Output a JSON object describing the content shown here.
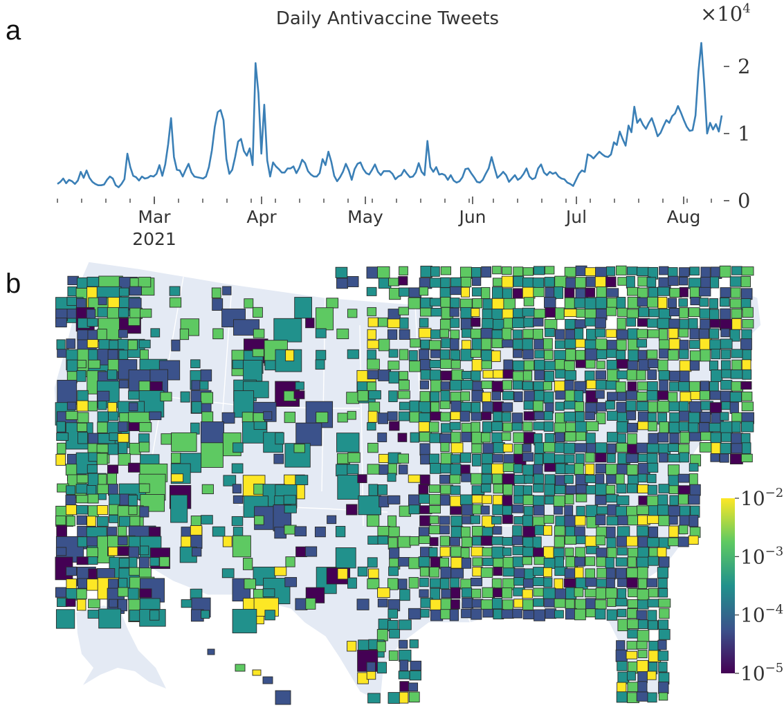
{
  "panels": {
    "a": "a",
    "b": "b"
  },
  "chart_data": [
    {
      "type": "line",
      "title": "Daily Antivaccine Tweets",
      "y_multiplier_label": "×10",
      "y_multiplier_exp": "4",
      "ylim": [
        0,
        25000
      ],
      "y_ticks": [
        {
          "v": 0,
          "label": "0"
        },
        {
          "v": 10000,
          "label": "1"
        },
        {
          "v": 20000,
          "label": "2"
        }
      ],
      "x_ticks": [
        {
          "date": "2021-03-01",
          "label": "Mar",
          "sub": "2021"
        },
        {
          "date": "2021-04-01",
          "label": "Apr"
        },
        {
          "date": "2021-05-01",
          "label": "May"
        },
        {
          "date": "2021-06-01",
          "label": "Jun"
        },
        {
          "date": "2021-07-01",
          "label": "Jul"
        },
        {
          "date": "2021-08-01",
          "label": "Aug"
        }
      ],
      "x_start": "2021-02-01",
      "x_end": "2021-08-12",
      "color": "#3a7fb6",
      "series": [
        {
          "values": [
            2500,
            2800,
            3300,
            2600,
            3100,
            2900,
            2500,
            3000,
            4300,
            3400,
            4500,
            3400,
            2800,
            2500,
            2300,
            2300,
            2400,
            3100,
            3600,
            3300,
            2300,
            2000,
            2500,
            3200,
            7000,
            5000,
            3700,
            3500,
            3000,
            3600,
            3300,
            3400,
            3700,
            3600,
            4000,
            5300,
            3700,
            5400,
            8400,
            12300,
            6500,
            4600,
            4500,
            3600,
            4600,
            5500,
            4200,
            3600,
            3500,
            3400,
            3300,
            3600,
            5000,
            7500,
            11000,
            13200,
            13500,
            12000,
            6200,
            4000,
            4600,
            6500,
            8800,
            9200,
            7400,
            6700,
            7800,
            5300,
            20500,
            16000,
            7000,
            14300,
            6000,
            3600,
            5700,
            5100,
            4700,
            4200,
            4200,
            4800,
            4800,
            5100,
            4100,
            4900,
            6100,
            5600,
            4400,
            3900,
            3600,
            3600,
            4100,
            6200,
            5300,
            7300,
            5800,
            3700,
            2900,
            3500,
            4300,
            5500,
            4500,
            3100,
            4700,
            5500,
            5700,
            4700,
            4100,
            3900,
            4600,
            5400,
            4300,
            3800,
            4400,
            4400,
            4400,
            4000,
            3200,
            3600,
            3800,
            4600,
            4000,
            3500,
            3600,
            4200,
            5600,
            4300,
            3800,
            8900,
            5000,
            4300,
            5000,
            3900,
            4000,
            3800,
            3100,
            3800,
            3000,
            2700,
            2900,
            3500,
            4700,
            4800,
            4100,
            3500,
            2800,
            2700,
            3100,
            4000,
            4800,
            6500,
            4900,
            3400,
            3800,
            4300,
            3800,
            2800,
            3300,
            3800,
            3100,
            3400,
            4000,
            4800,
            3600,
            3200,
            3400,
            4800,
            5400,
            4200,
            3800,
            4300,
            4000,
            4200,
            3600,
            3300,
            3200,
            2700,
            2500,
            2200,
            3100,
            4000,
            4500,
            4300,
            6900,
            6700,
            6300,
            6800,
            7300,
            6900,
            6600,
            6500,
            6900,
            8700,
            8300,
            10300,
            9200,
            8200,
            11200,
            10200,
            14000,
            11600,
            12200,
            11300,
            10700,
            11600,
            12300,
            11000,
            9600,
            10100,
            11100,
            12000,
            11600,
            12600,
            13000,
            14100,
            13100,
            12000,
            11000,
            10400,
            10500,
            12700,
            19200,
            23500,
            17400,
            10000,
            11600,
            10600,
            11400,
            10300,
            12700
          ]
        }
      ]
    },
    {
      "type": "heatmap",
      "colorbar": {
        "scale": "log",
        "range": [
          1e-05,
          0.01
        ],
        "ticks": [
          {
            "v": 1e-05,
            "base": "10",
            "exp": "−5"
          },
          {
            "v": 0.0001,
            "base": "10",
            "exp": "−4"
          },
          {
            "v": 0.001,
            "base": "10",
            "exp": "−3"
          },
          {
            "v": 0.01,
            "base": "10",
            "exp": "−2"
          }
        ],
        "colors": [
          "#440154",
          "#3b528b",
          "#21918c",
          "#5ec962",
          "#fde725"
        ]
      }
    }
  ]
}
